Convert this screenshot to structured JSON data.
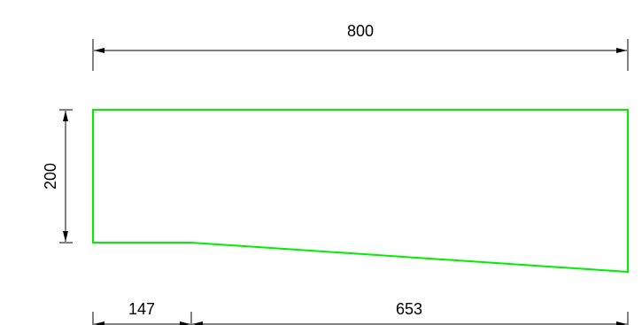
{
  "drawing": {
    "shape_color": "#00ee00",
    "dimension_color": "#000000",
    "shape": {
      "width": 800,
      "height": 200,
      "left_segment": 147,
      "right_segment": 653
    },
    "dimensions": {
      "overall_width": "800",
      "height": "200",
      "left_segment": "147",
      "right_segment": "653"
    }
  }
}
